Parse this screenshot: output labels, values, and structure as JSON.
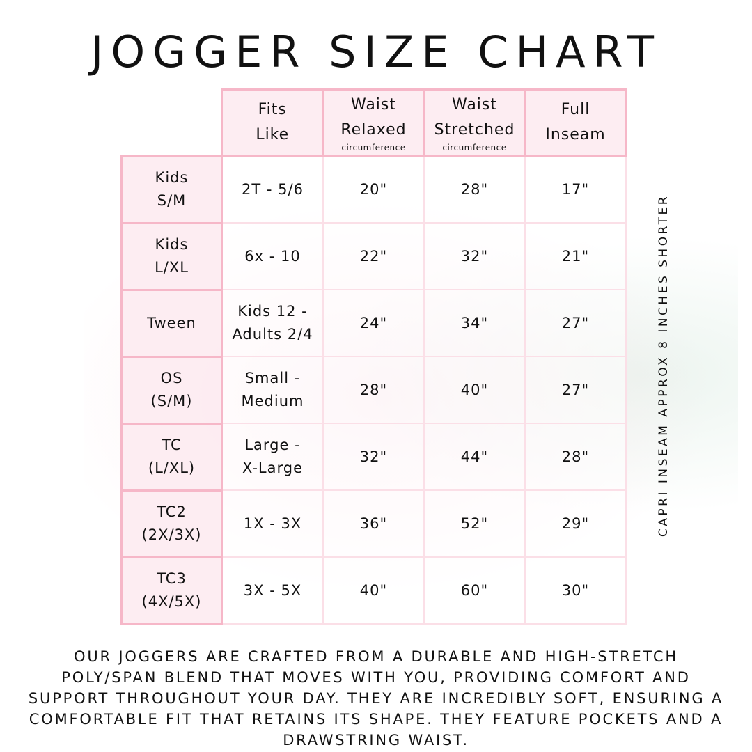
{
  "title": "JOGGER SIZE CHART",
  "headers": [
    {
      "line1": "Fits",
      "line2": "Like",
      "sub": ""
    },
    {
      "line1": "Waist",
      "line2": "Relaxed",
      "sub": "circumference"
    },
    {
      "line1": "Waist",
      "line2": "Stretched",
      "sub": "circumference"
    },
    {
      "line1": "Full",
      "line2": "Inseam",
      "sub": ""
    }
  ],
  "rows": [
    {
      "size1": "Kids",
      "size2": "S/M",
      "fits1": "2T - 5/6",
      "fits2": "",
      "relaxed": "20\"",
      "stretched": "28\"",
      "inseam": "17\""
    },
    {
      "size1": "Kids",
      "size2": "L/XL",
      "fits1": "6x - 10",
      "fits2": "",
      "relaxed": "22\"",
      "stretched": "32\"",
      "inseam": "21\""
    },
    {
      "size1": "Tween",
      "size2": "",
      "fits1": "Kids 12 -",
      "fits2": "Adults 2/4",
      "relaxed": "24\"",
      "stretched": "34\"",
      "inseam": "27\""
    },
    {
      "size1": "OS",
      "size2": "(S/M)",
      "fits1": "Small -",
      "fits2": "Medium",
      "relaxed": "28\"",
      "stretched": "40\"",
      "inseam": "27\""
    },
    {
      "size1": "TC",
      "size2": "(L/XL)",
      "fits1": "Large -",
      "fits2": "X-Large",
      "relaxed": "32\"",
      "stretched": "44\"",
      "inseam": "28\""
    },
    {
      "size1": "TC2",
      "size2": "(2X/3X)",
      "fits1": "1X - 3X",
      "fits2": "",
      "relaxed": "36\"",
      "stretched": "52\"",
      "inseam": "29\""
    },
    {
      "size1": "TC3",
      "size2": "(4X/5X)",
      "fits1": "3X - 5X",
      "fits2": "",
      "relaxed": "40\"",
      "stretched": "60\"",
      "inseam": "30\""
    }
  ],
  "side_note": "CAPRI INSEAM APPROX 8 INCHES SHORTER",
  "description": "Our joggers are crafted from a durable and high-stretch poly/span blend that moves with you, providing comfort and support throughout your day. They are incredibly soft, ensuring a comfortable fit that retains its shape. They feature pockets and a drawstring waist.",
  "colors": {
    "header_fill": "#fdebf1",
    "border": "#f6b7c8",
    "cell_border": "#fbdfe7"
  }
}
